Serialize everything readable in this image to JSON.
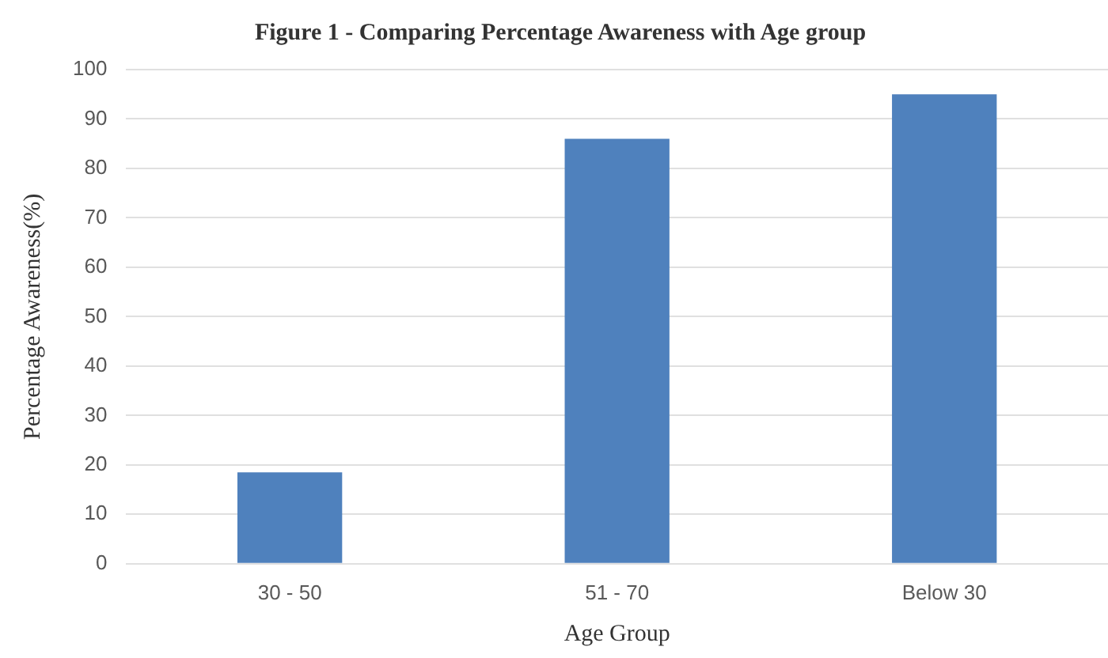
{
  "chart_data": {
    "type": "bar",
    "title": "Figure 1 - Comparing Percentage Awareness with Age group",
    "xlabel": "Age Group",
    "ylabel": "Percentage Awareness(%)",
    "categories": [
      "30 - 50",
      "51 - 70",
      "Below 30"
    ],
    "values": [
      18.5,
      86,
      95
    ],
    "color": "#4f81bd",
    "ylim": [
      0,
      100
    ],
    "yticks": [
      0,
      10,
      20,
      30,
      40,
      50,
      60,
      70,
      80,
      90,
      100
    ],
    "grid": "y",
    "legend": false
  }
}
